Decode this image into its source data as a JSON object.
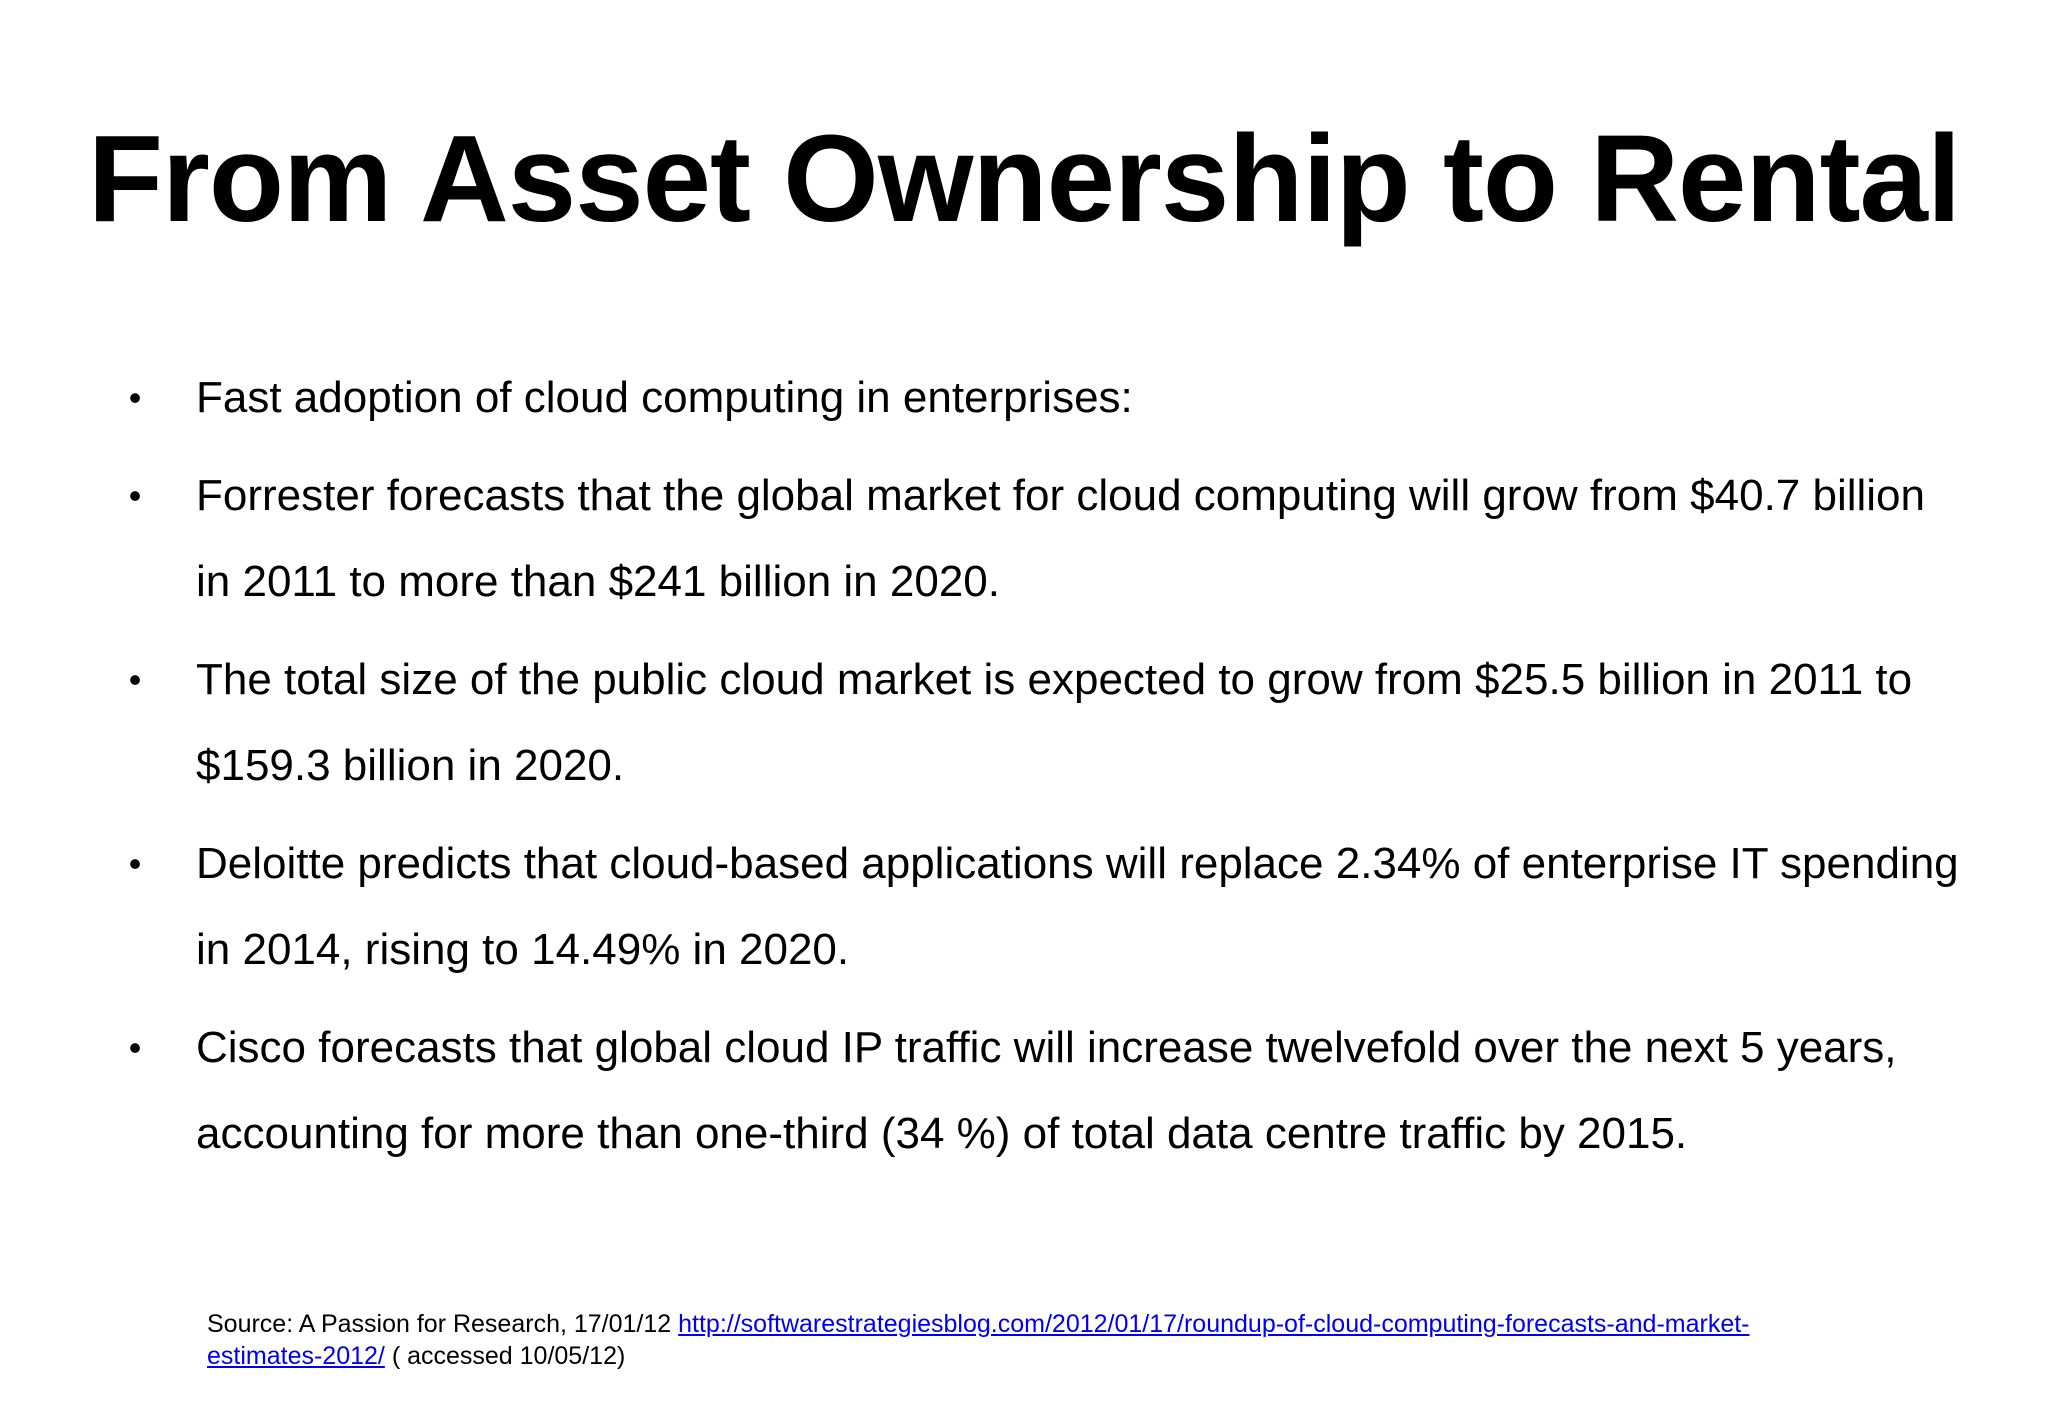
{
  "slide": {
    "title": "From Asset Ownership to Rental",
    "bullet_marker": "•",
    "bullets": [
      "Fast adoption of cloud computing in enterprises:",
      "Forrester forecasts that the global market for cloud computing will grow from $40.7 billion in 2011 to more than $241 billion in 2020.",
      "The total size of the public cloud market is expected to grow from $25.5 billion in 2011 to $159.3 billion in 2020.",
      "Deloitte predicts that cloud-based applications will replace 2.34% of enterprise IT spending in 2014, rising to 14.49% in 2020.",
      "Cisco forecasts that global cloud IP traffic will increase twelvefold over the next 5 years, accounting for  more than one-third (34 %) of total data centre traffic by 2015."
    ],
    "source": {
      "prefix": "Source:  A Passion for Research, 17/01/12 ",
      "link_text": "http://softwarestrategiesblog.com/2012/01/17/roundup-of-cloud-computing-forecasts-and-market-estimates-2012/",
      "suffix": "  ( accessed 10/05/12)"
    },
    "colors": {
      "text": "#000000",
      "link": "#0000ee",
      "background": "#ffffff"
    }
  }
}
